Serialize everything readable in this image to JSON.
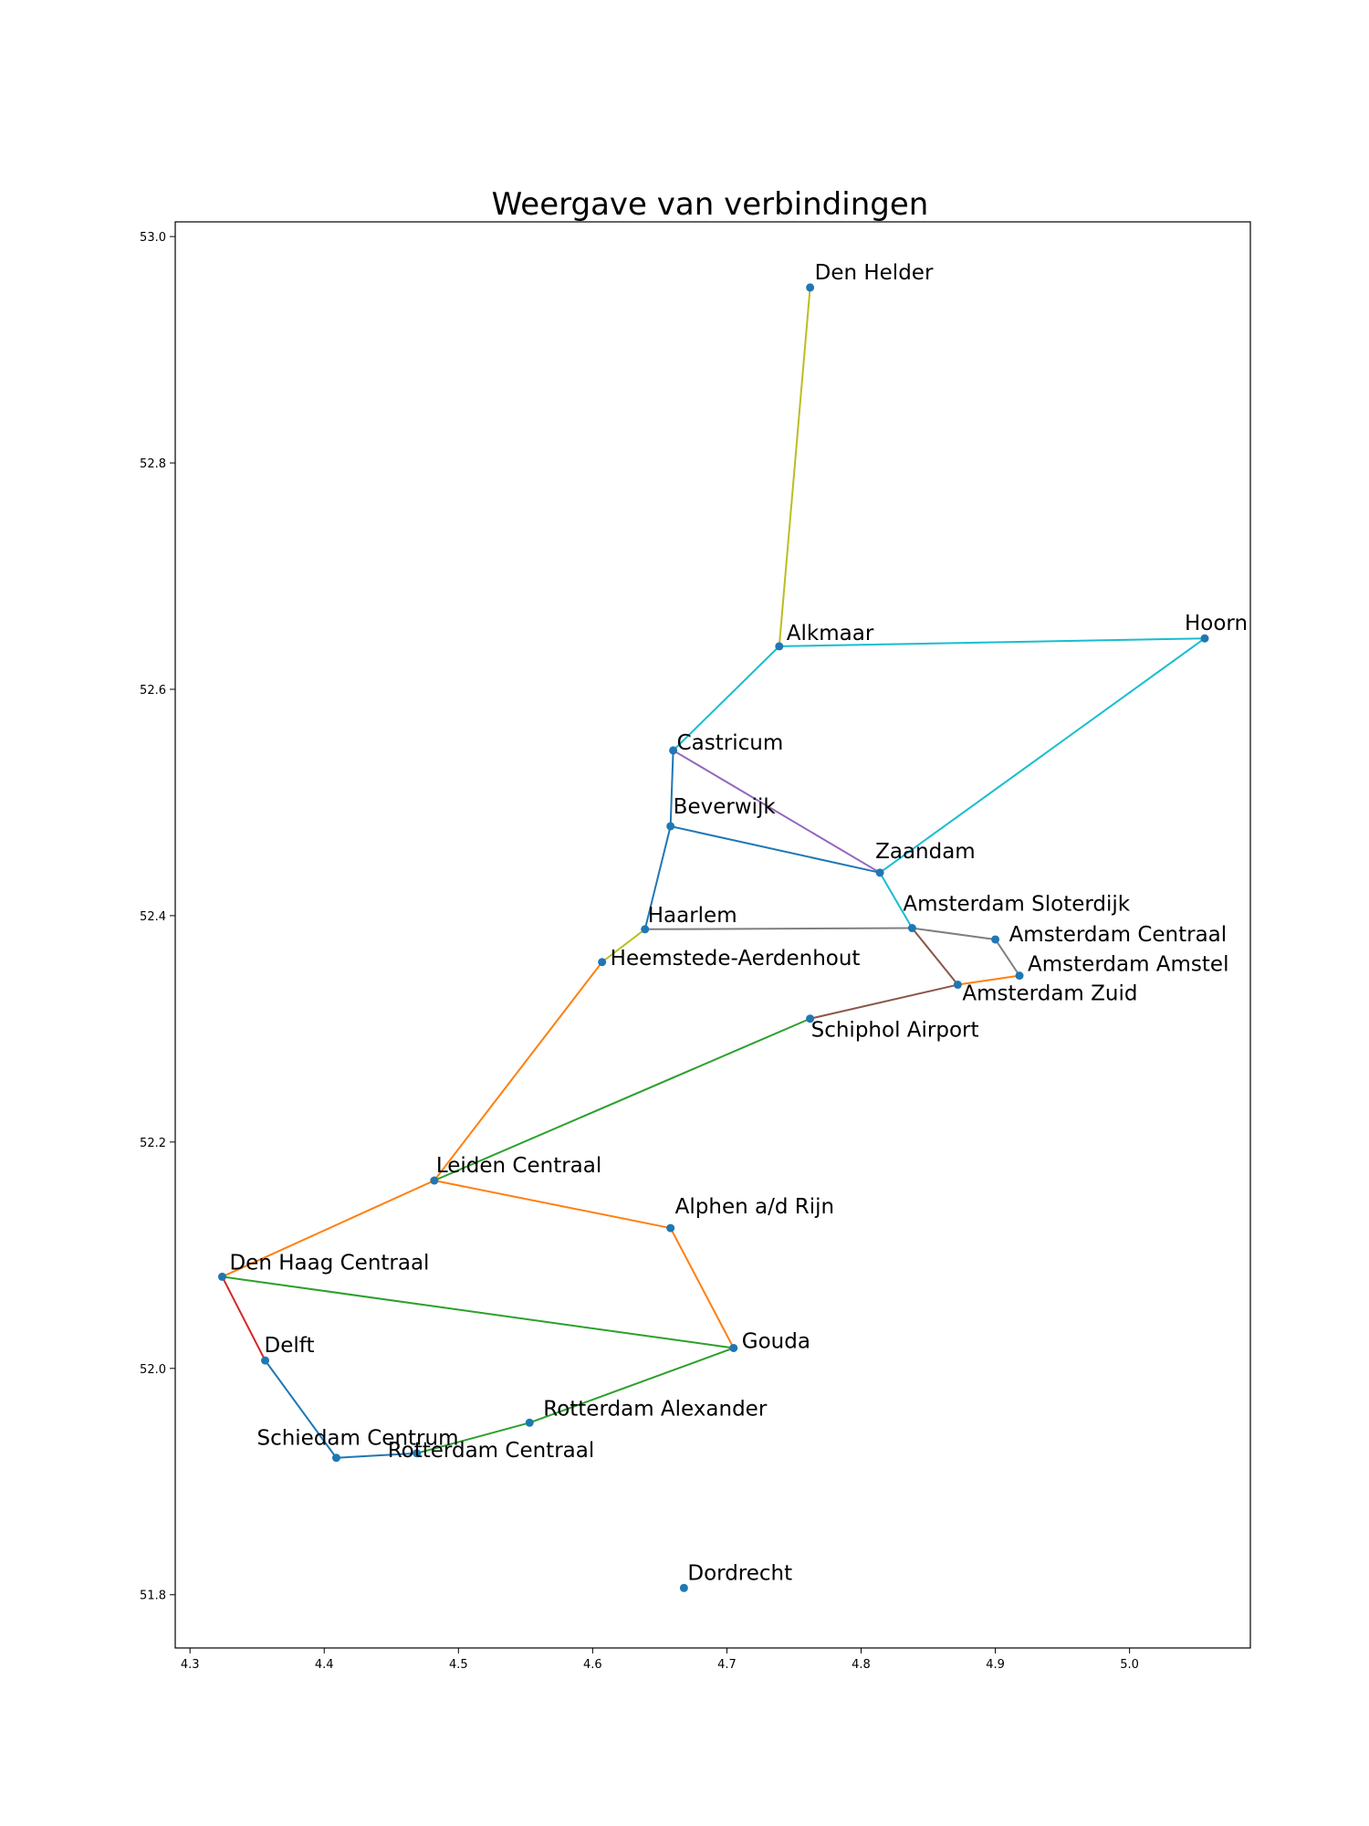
{
  "chart_data": {
    "type": "scatter",
    "title": "Weergave van verbindingen",
    "xlabel": "",
    "ylabel": "",
    "xlim": [
      4.289,
      5.09
    ],
    "ylim": [
      51.753,
      53.013
    ],
    "xticks": [
      4.3,
      4.4,
      4.5,
      4.6,
      4.7,
      4.8,
      4.9,
      5.0
    ],
    "yticks": [
      51.8,
      52.0,
      52.2,
      52.4,
      52.6,
      52.8,
      53.0
    ],
    "xtick_labels": [
      "4.3",
      "4.4",
      "4.5",
      "4.6",
      "4.7",
      "4.8",
      "4.9",
      "5.0"
    ],
    "ytick_labels": [
      "51.8",
      "52.0",
      "52.2",
      "52.4",
      "52.6",
      "52.8",
      "53.0"
    ],
    "grid": false,
    "point_color": "#1f77b4",
    "stations": [
      {
        "name": "Den Helder",
        "x": 4.762,
        "y": 52.955
      },
      {
        "name": "Alkmaar",
        "x": 4.739,
        "y": 52.638
      },
      {
        "name": "Hoorn",
        "x": 5.056,
        "y": 52.645
      },
      {
        "name": "Castricum",
        "x": 4.66,
        "y": 52.546
      },
      {
        "name": "Beverwijk",
        "x": 4.658,
        "y": 52.479
      },
      {
        "name": "Zaandam",
        "x": 4.814,
        "y": 52.438
      },
      {
        "name": "Amsterdam Sloterdijk",
        "x": 4.838,
        "y": 52.389
      },
      {
        "name": "Haarlem",
        "x": 4.639,
        "y": 52.388
      },
      {
        "name": "Amsterdam Centraal",
        "x": 4.9,
        "y": 52.379
      },
      {
        "name": "Heemstede-Aerdenhout",
        "x": 4.607,
        "y": 52.359
      },
      {
        "name": "Amsterdam Amstel",
        "x": 4.918,
        "y": 52.347
      },
      {
        "name": "Amsterdam Zuid",
        "x": 4.872,
        "y": 52.339
      },
      {
        "name": "Schiphol Airport",
        "x": 4.762,
        "y": 52.309
      },
      {
        "name": "Leiden Centraal",
        "x": 4.482,
        "y": 52.166
      },
      {
        "name": "Alphen a/d Rijn",
        "x": 4.658,
        "y": 52.124
      },
      {
        "name": "Den Haag Centraal",
        "x": 4.324,
        "y": 52.081
      },
      {
        "name": "Gouda",
        "x": 4.705,
        "y": 52.018
      },
      {
        "name": "Delft",
        "x": 4.356,
        "y": 52.007
      },
      {
        "name": "Rotterdam Alexander",
        "x": 4.553,
        "y": 51.952
      },
      {
        "name": "Rotterdam Centraal",
        "x": 4.469,
        "y": 51.925
      },
      {
        "name": "Schiedam Centrum",
        "x": 4.409,
        "y": 51.921
      },
      {
        "name": "Dordrecht",
        "x": 4.668,
        "y": 51.806
      }
    ],
    "connections": [
      {
        "from": "Den Helder",
        "to": "Alkmaar",
        "color": "#bcbd22"
      },
      {
        "from": "Alkmaar",
        "to": "Hoorn",
        "color": "#17becf"
      },
      {
        "from": "Alkmaar",
        "to": "Castricum",
        "color": "#17becf"
      },
      {
        "from": "Hoorn",
        "to": "Zaandam",
        "color": "#17becf"
      },
      {
        "from": "Castricum",
        "to": "Zaandam",
        "color": "#9467bd"
      },
      {
        "from": "Castricum",
        "to": "Beverwijk",
        "color": "#1f77b4"
      },
      {
        "from": "Beverwijk",
        "to": "Zaandam",
        "color": "#1f77b4"
      },
      {
        "from": "Beverwijk",
        "to": "Haarlem",
        "color": "#1f77b4"
      },
      {
        "from": "Zaandam",
        "to": "Amsterdam Sloterdijk",
        "color": "#17becf"
      },
      {
        "from": "Haarlem",
        "to": "Amsterdam Sloterdijk",
        "color": "#7f7f7f"
      },
      {
        "from": "Amsterdam Sloterdijk",
        "to": "Amsterdam Centraal",
        "color": "#7f7f7f"
      },
      {
        "from": "Amsterdam Centraal",
        "to": "Amsterdam Amstel",
        "color": "#7f7f7f"
      },
      {
        "from": "Amsterdam Sloterdijk",
        "to": "Amsterdam Zuid",
        "color": "#8c564b"
      },
      {
        "from": "Amsterdam Amstel",
        "to": "Amsterdam Zuid",
        "color": "#ff7f0e"
      },
      {
        "from": "Amsterdam Zuid",
        "to": "Schiphol Airport",
        "color": "#8c564b"
      },
      {
        "from": "Haarlem",
        "to": "Heemstede-Aerdenhout",
        "color": "#bcbd22"
      },
      {
        "from": "Heemstede-Aerdenhout",
        "to": "Leiden Centraal",
        "color": "#ff7f0e"
      },
      {
        "from": "Schiphol Airport",
        "to": "Leiden Centraal",
        "color": "#2ca02c"
      },
      {
        "from": "Leiden Centraal",
        "to": "Alphen a/d Rijn",
        "color": "#ff7f0e"
      },
      {
        "from": "Alphen a/d Rijn",
        "to": "Gouda",
        "color": "#ff7f0e"
      },
      {
        "from": "Leiden Centraal",
        "to": "Den Haag Centraal",
        "color": "#ff7f0e"
      },
      {
        "from": "Den Haag Centraal",
        "to": "Gouda",
        "color": "#2ca02c"
      },
      {
        "from": "Den Haag Centraal",
        "to": "Delft",
        "color": "#d62728"
      },
      {
        "from": "Delft",
        "to": "Schiedam Centrum",
        "color": "#1f77b4"
      },
      {
        "from": "Schiedam Centrum",
        "to": "Rotterdam Centraal",
        "color": "#1f77b4"
      },
      {
        "from": "Rotterdam Centraal",
        "to": "Rotterdam Alexander",
        "color": "#2ca02c"
      },
      {
        "from": "Rotterdam Alexander",
        "to": "Gouda",
        "color": "#2ca02c"
      }
    ]
  }
}
